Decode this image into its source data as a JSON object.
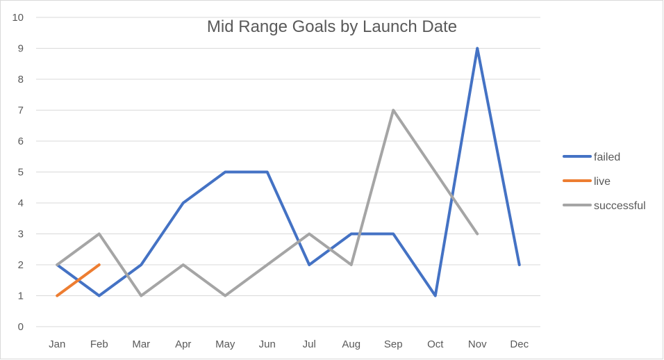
{
  "chart_data": {
    "type": "line",
    "title": "Mid Range Goals by Launch Date",
    "xlabel": "",
    "ylabel": "",
    "categories": [
      "Jan",
      "Feb",
      "Mar",
      "Apr",
      "May",
      "Jun",
      "Jul",
      "Aug",
      "Sep",
      "Oct",
      "Nov",
      "Dec"
    ],
    "ylim": [
      0,
      10
    ],
    "yticks": [
      "0",
      "1",
      "2",
      "3",
      "4",
      "5",
      "6",
      "7",
      "8",
      "9",
      "10"
    ],
    "grid": true,
    "legend_position": "right",
    "series": [
      {
        "name": "failed",
        "color": "#4472C4",
        "values": [
          2,
          1,
          2,
          4,
          5,
          5,
          2,
          3,
          3,
          1,
          9,
          2
        ]
      },
      {
        "name": "live",
        "color": "#ED7D31",
        "values": [
          1,
          2,
          null,
          null,
          null,
          null,
          null,
          null,
          null,
          null,
          null,
          null
        ]
      },
      {
        "name": "successful",
        "color": "#A5A5A5",
        "values": [
          2,
          3,
          1,
          2,
          1,
          2,
          3,
          2,
          7,
          5,
          3,
          null
        ]
      }
    ]
  }
}
